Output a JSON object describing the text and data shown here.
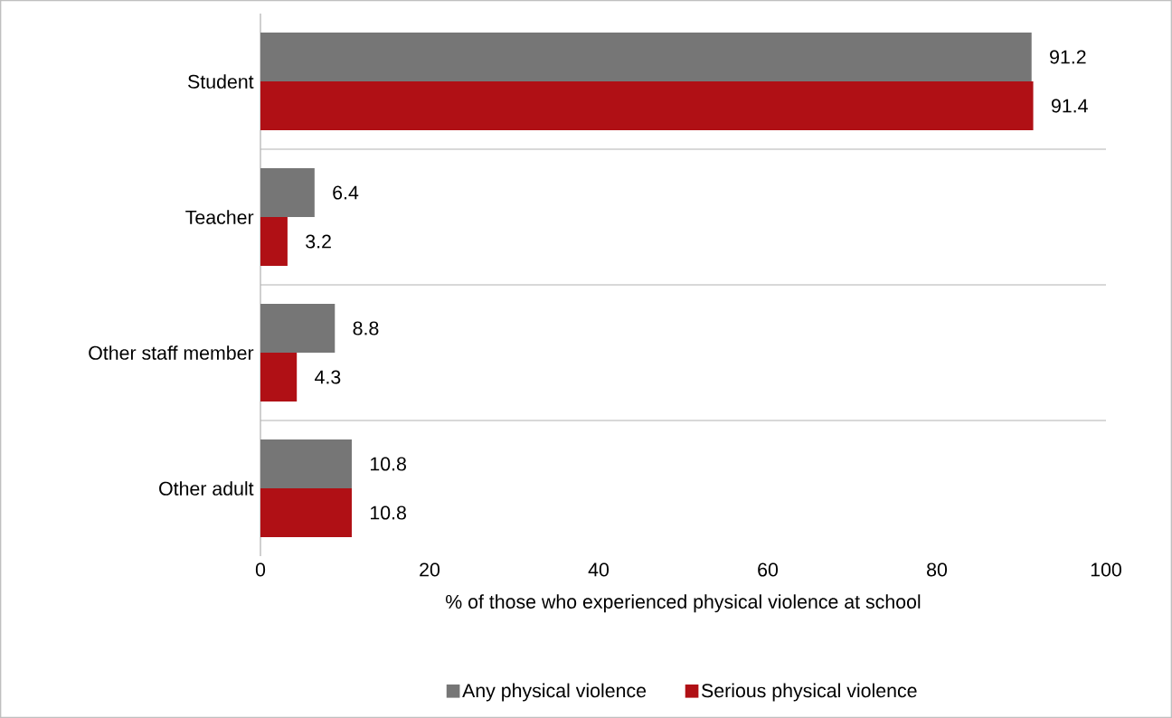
{
  "chart_data": {
    "type": "bar",
    "orientation": "horizontal",
    "xlabel": "% of those who experienced physical violence at school",
    "categories": [
      "Student",
      "Teacher",
      "Other staff member",
      "Other adult"
    ],
    "series": [
      {
        "name": "Any physical violence",
        "color": "#767676",
        "values": [
          91.2,
          6.4,
          8.8,
          10.8
        ]
      },
      {
        "name": "Serious physical violence",
        "color": "#b01015",
        "values": [
          91.4,
          3.2,
          4.3,
          10.8
        ]
      }
    ],
    "xlim": [
      0,
      100
    ],
    "xticks": [
      0,
      20,
      40,
      60,
      80,
      100
    ],
    "grid": "y",
    "legend": "bottom",
    "data_labels": true
  }
}
